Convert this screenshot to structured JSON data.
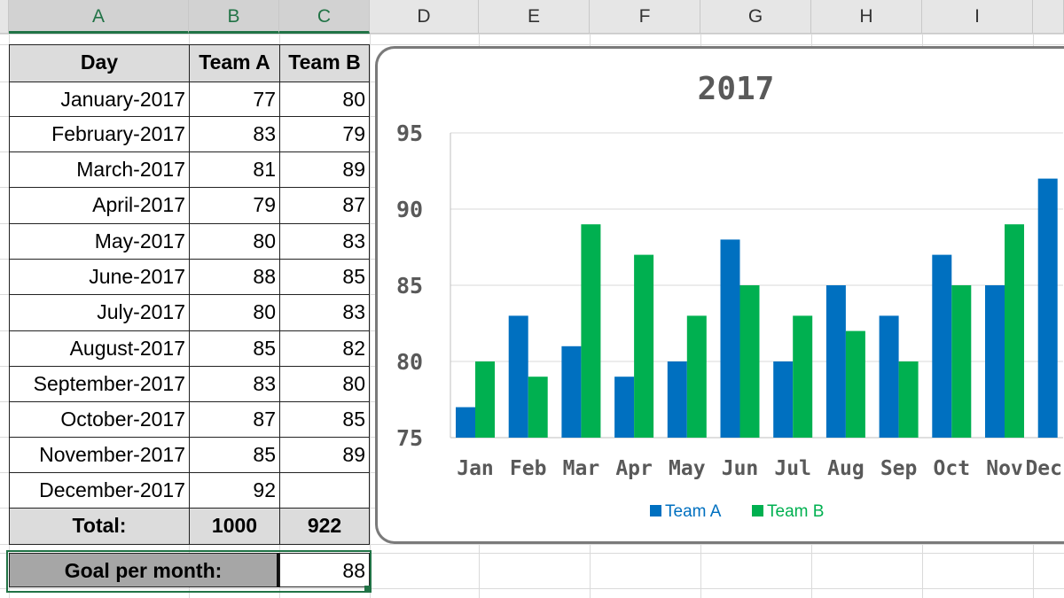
{
  "columns": [
    "A",
    "B",
    "C",
    "D",
    "E",
    "F",
    "G",
    "H",
    "I"
  ],
  "table": {
    "headers": [
      "Day",
      "Team A",
      "Team B"
    ],
    "rows": [
      [
        "January-2017",
        "77",
        "80"
      ],
      [
        "February-2017",
        "83",
        "79"
      ],
      [
        "March-2017",
        "81",
        "89"
      ],
      [
        "April-2017",
        "79",
        "87"
      ],
      [
        "May-2017",
        "80",
        "83"
      ],
      [
        "June-2017",
        "88",
        "85"
      ],
      [
        "July-2017",
        "80",
        "83"
      ],
      [
        "August-2017",
        "85",
        "82"
      ],
      [
        "September-2017",
        "83",
        "80"
      ],
      [
        "October-2017",
        "87",
        "85"
      ],
      [
        "November-2017",
        "85",
        "89"
      ],
      [
        "December-2017",
        "92",
        ""
      ]
    ],
    "total": {
      "label": "Total:",
      "team_a": "1000",
      "team_b": "922"
    },
    "goal": {
      "label": "Goal per month:",
      "value": "88"
    }
  },
  "chart_data": {
    "type": "bar",
    "title": "2017",
    "categories": [
      "Jan",
      "Feb",
      "Mar",
      "Apr",
      "May",
      "Jun",
      "Jul",
      "Aug",
      "Sep",
      "Oct",
      "Nov",
      "Dec"
    ],
    "series": [
      {
        "name": "Team A",
        "color": "#0070c0",
        "values": [
          77,
          83,
          81,
          79,
          80,
          88,
          80,
          85,
          83,
          87,
          85,
          92
        ]
      },
      {
        "name": "Team B",
        "color": "#00b050",
        "values": [
          80,
          79,
          89,
          87,
          83,
          85,
          83,
          82,
          80,
          85,
          89,
          null
        ]
      }
    ],
    "yticks": [
      "75",
      "80",
      "85",
      "90",
      "95"
    ],
    "ylim": [
      75,
      95
    ],
    "grid": true,
    "legend": "bottom"
  }
}
